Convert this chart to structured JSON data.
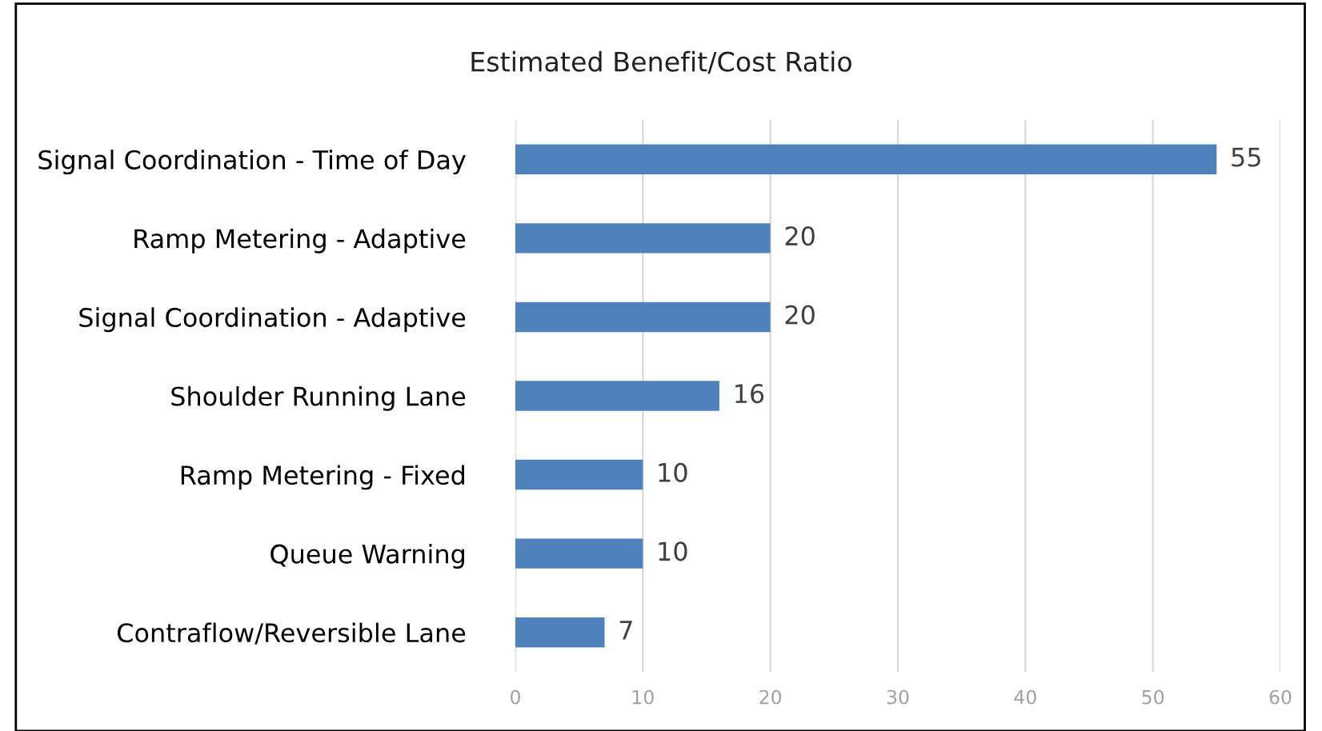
{
  "chart_data": {
    "type": "bar",
    "orientation": "horizontal",
    "title": "Estimated Benefit/Cost Ratio",
    "categories": [
      "Signal Coordination - Time of Day",
      "Ramp Metering - Adaptive",
      "Signal Coordination - Adaptive",
      "Shoulder Running Lane",
      "Ramp Metering - Fixed",
      "Queue Warning",
      "Contraflow/Reversible Lane"
    ],
    "values": [
      55,
      20,
      20,
      16,
      10,
      10,
      7
    ],
    "color": "#4f81bd",
    "xlim": [
      0,
      60
    ],
    "xticks": [
      0,
      10,
      20,
      30,
      40,
      50,
      60
    ],
    "grid": "x",
    "data_labels": true
  }
}
